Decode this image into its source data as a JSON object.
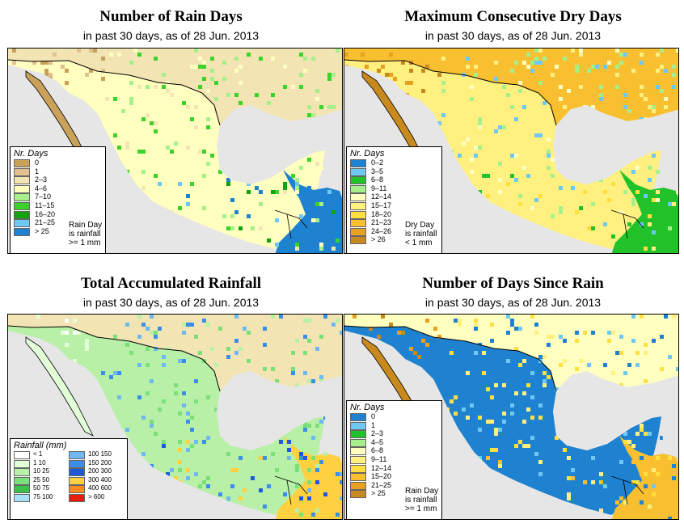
{
  "panels": [
    {
      "title": "Number of Rain Days",
      "subtitle": "in past 30 days, as of  28 Jun. 2013",
      "legend": {
        "title": "Nr. Days",
        "items": [
          {
            "label": "0",
            "color": "#c9a15a"
          },
          {
            "label": "1",
            "color": "#e3c08f"
          },
          {
            "label": "2–3",
            "color": "#f3e4b4"
          },
          {
            "label": "4–6",
            "color": "#ffffc0"
          },
          {
            "label": "7–10",
            "color": "#a6f08c"
          },
          {
            "label": "11–15",
            "color": "#3cd22a"
          },
          {
            "label": "16–20",
            "color": "#13a20f"
          },
          {
            "label": "21–25",
            "color": "#6fc8f2"
          },
          {
            "label": "> 25",
            "color": "#1e82d0"
          }
        ]
      },
      "note": "Rain Day\nis rainfall\n>= 1 mm"
    },
    {
      "title": "Maximum Consecutive Dry Days",
      "subtitle": "in past 30 days, as of  28 Jun. 2013",
      "legend": {
        "title": "Nr. Days",
        "items": [
          {
            "label": "0–2",
            "color": "#1e82d0"
          },
          {
            "label": "3–5",
            "color": "#6fc8f2"
          },
          {
            "label": "6–8",
            "color": "#22c22a"
          },
          {
            "label": "9–11",
            "color": "#a6f08c"
          },
          {
            "label": "12–14",
            "color": "#ffffc0"
          },
          {
            "label": "15–17",
            "color": "#fff080"
          },
          {
            "label": "18–20",
            "color": "#ffe040"
          },
          {
            "label": "21–23",
            "color": "#f8c030"
          },
          {
            "label": "24–26",
            "color": "#e8a020"
          },
          {
            "label": "> 26",
            "color": "#c88a1e"
          }
        ]
      },
      "note": "Dry Day\nis rainfall\n< 1 mm"
    },
    {
      "title": "Total Accumulated Rainfall",
      "subtitle": "in past 30 days, as of  28 Jun. 2013",
      "legend": {
        "title": "Rainfall (mm)",
        "left": [
          {
            "label": "< 1",
            "color": "#ffffff"
          },
          {
            "label": "1   10",
            "color": "#e3ffd8"
          },
          {
            "label": "10   25",
            "color": "#b8f0a8"
          },
          {
            "label": "25   50",
            "color": "#7ce07a"
          },
          {
            "label": "50   75",
            "color": "#3cc24a"
          },
          {
            "label": "75   100",
            "color": "#a8e0f8"
          }
        ],
        "right": [
          {
            "label": "100   150",
            "color": "#6fb8f2"
          },
          {
            "label": "150   200",
            "color": "#3c8ee8"
          },
          {
            "label": "200   300",
            "color": "#1e5ad8"
          },
          {
            "label": "300   400",
            "color": "#ffd040"
          },
          {
            "label": "400   600",
            "color": "#ff8a20"
          },
          {
            "label": "> 600",
            "color": "#e81e10"
          }
        ]
      }
    },
    {
      "title": "Number of Days Since Rain",
      "subtitle": "in past 30 days, as of  28 Jun. 2013",
      "legend": {
        "title": "Nr. Days",
        "items": [
          {
            "label": "0",
            "color": "#1e82d0"
          },
          {
            "label": "1",
            "color": "#6fc8f2"
          },
          {
            "label": "2–3",
            "color": "#22c22a"
          },
          {
            "label": "4–5",
            "color": "#a6f08c"
          },
          {
            "label": "6–8",
            "color": "#ffffc0"
          },
          {
            "label": "9–11",
            "color": "#fff080"
          },
          {
            "label": "12–14",
            "color": "#ffe040"
          },
          {
            "label": "15–20",
            "color": "#f8c030"
          },
          {
            "label": "21–25",
            "color": "#e8a020"
          },
          {
            "label": "> 25",
            "color": "#c88a1e"
          }
        ]
      },
      "note": "Rain Day\nis rainfall\n>= 1 mm"
    }
  ]
}
